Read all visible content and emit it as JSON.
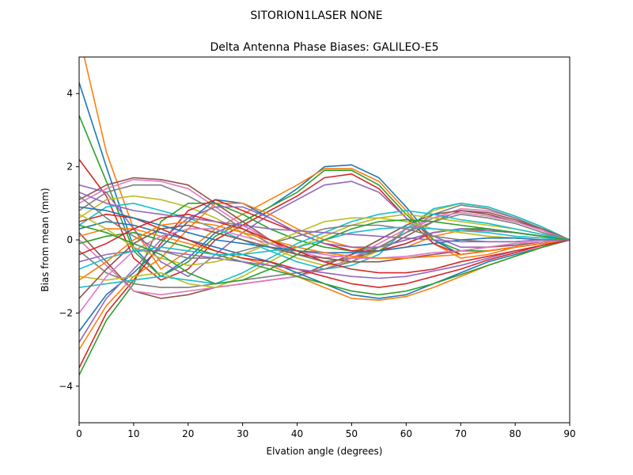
{
  "figure": {
    "suptitle": "SITORION1LASER  NONE"
  },
  "chart_data": {
    "type": "line",
    "title": "Delta Antenna Phase Biases: GALILEO-E5",
    "xlabel": "Elvation angle (degrees)",
    "ylabel": "Bias from mean (mm)",
    "xlim": [
      0,
      90
    ],
    "ylim": [
      -5,
      5
    ],
    "xticks": [
      0,
      10,
      20,
      30,
      40,
      50,
      60,
      70,
      80,
      90
    ],
    "yticks": [
      -4,
      -2,
      0,
      2,
      4
    ],
    "ytick_labels": [
      "−4",
      "−2",
      "0",
      "2",
      "4"
    ],
    "grid": false,
    "legend": "none",
    "x": [
      0,
      5,
      10,
      15,
      20,
      25,
      30,
      35,
      40,
      45,
      50,
      55,
      60,
      65,
      70,
      75,
      80,
      85,
      90
    ],
    "colors": [
      "#1f77b4",
      "#ff7f0e",
      "#2ca02c",
      "#d62728",
      "#9467bd",
      "#8c564b",
      "#e377c2",
      "#7f7f7f",
      "#bcbd22",
      "#17becf"
    ],
    "series": [
      {
        "values": [
          4.3,
          2.0,
          -0.2,
          -1.0,
          -0.5,
          0.2,
          0.5,
          0.9,
          1.4,
          2.0,
          2.05,
          1.7,
          0.9,
          0.0,
          -0.4,
          -0.3,
          -0.2,
          -0.1,
          0.0
        ]
      },
      {
        "values": [
          5.6,
          2.4,
          0.3,
          -0.8,
          -0.3,
          0.3,
          0.7,
          1.1,
          1.5,
          1.95,
          1.95,
          1.6,
          0.8,
          -0.1,
          -0.5,
          -0.4,
          -0.2,
          -0.1,
          0.0
        ]
      },
      {
        "values": [
          3.4,
          1.6,
          -0.3,
          -1.0,
          -0.6,
          0.1,
          0.5,
          0.9,
          1.3,
          1.9,
          1.9,
          1.5,
          0.7,
          0.0,
          -0.3,
          -0.3,
          -0.2,
          -0.1,
          0.0
        ]
      },
      {
        "values": [
          2.2,
          1.2,
          -0.5,
          -1.1,
          -0.8,
          0.0,
          0.4,
          0.8,
          1.2,
          1.7,
          1.8,
          1.4,
          0.6,
          -0.1,
          -0.4,
          -0.3,
          -0.2,
          -0.1,
          0.0
        ]
      },
      {
        "values": [
          1.5,
          1.3,
          0.3,
          -0.6,
          -1.0,
          -0.4,
          0.2,
          0.7,
          1.1,
          1.5,
          1.6,
          1.3,
          0.6,
          0.1,
          -0.2,
          -0.2,
          -0.1,
          -0.05,
          0.0
        ]
      },
      {
        "values": [
          1.1,
          1.5,
          1.7,
          1.65,
          1.5,
          1.0,
          0.5,
          0.0,
          -0.4,
          -0.6,
          -0.5,
          -0.3,
          0.1,
          0.5,
          0.8,
          0.75,
          0.55,
          0.3,
          0.0
        ]
      },
      {
        "values": [
          1.0,
          1.4,
          1.65,
          1.6,
          1.4,
          0.9,
          0.4,
          0.0,
          -0.3,
          -0.5,
          -0.4,
          -0.2,
          0.2,
          0.6,
          0.85,
          0.8,
          0.6,
          0.3,
          0.0
        ]
      },
      {
        "values": [
          0.8,
          1.3,
          1.5,
          1.5,
          1.2,
          0.8,
          0.3,
          -0.1,
          -0.4,
          -0.6,
          -0.5,
          -0.2,
          0.2,
          0.7,
          0.95,
          0.85,
          0.6,
          0.3,
          0.0
        ]
      },
      {
        "values": [
          0.6,
          1.1,
          1.2,
          1.1,
          0.9,
          0.6,
          0.2,
          -0.2,
          -0.5,
          -0.7,
          -0.6,
          -0.3,
          0.3,
          0.8,
          1.0,
          0.9,
          0.65,
          0.35,
          0.0
        ]
      },
      {
        "values": [
          0.4,
          0.9,
          1.0,
          0.8,
          0.6,
          0.3,
          0.0,
          -0.3,
          -0.6,
          -0.8,
          -0.7,
          -0.4,
          0.3,
          0.85,
          1.0,
          0.9,
          0.65,
          0.35,
          0.0
        ]
      },
      {
        "values": [
          -2.5,
          -1.5,
          -0.9,
          -0.2,
          0.5,
          1.1,
          1.0,
          0.6,
          0.2,
          -0.1,
          -0.3,
          -0.3,
          -0.1,
          0.2,
          0.3,
          0.3,
          0.2,
          0.1,
          0.0
        ]
      },
      {
        "values": [
          -3.0,
          -1.8,
          -1.0,
          -0.5,
          0.3,
          1.0,
          1.0,
          0.7,
          0.3,
          0.0,
          -0.2,
          -0.3,
          -0.2,
          0.1,
          0.25,
          0.25,
          0.2,
          0.1,
          0.0
        ]
      },
      {
        "values": [
          -3.7,
          -2.2,
          -1.2,
          0.5,
          1.0,
          1.0,
          0.7,
          0.3,
          0.0,
          -0.2,
          -0.3,
          -0.2,
          0.0,
          0.2,
          0.3,
          0.3,
          0.2,
          0.1,
          0.0
        ]
      },
      {
        "values": [
          -3.5,
          -2.0,
          -1.1,
          -0.1,
          0.8,
          1.1,
          0.8,
          0.5,
          0.2,
          -0.1,
          -0.3,
          -0.3,
          -0.1,
          0.2,
          0.3,
          0.25,
          0.2,
          0.1,
          0.0
        ]
      },
      {
        "values": [
          -2.8,
          -1.6,
          -0.8,
          0.0,
          0.6,
          0.9,
          0.9,
          0.6,
          0.2,
          -0.1,
          -0.2,
          -0.2,
          0.0,
          0.2,
          0.3,
          0.25,
          0.2,
          0.1,
          0.0
        ]
      },
      {
        "values": [
          0.2,
          -0.6,
          -1.4,
          -1.6,
          -1.5,
          -1.3,
          -1.2,
          -1.1,
          -1.0,
          -0.7,
          -0.4,
          0.0,
          0.4,
          0.7,
          0.8,
          0.7,
          0.5,
          0.3,
          0.0
        ]
      },
      {
        "values": [
          0.0,
          -0.7,
          -1.4,
          -1.5,
          -1.4,
          -1.3,
          -1.2,
          -1.1,
          -1.0,
          -0.8,
          -0.5,
          -0.1,
          0.3,
          0.6,
          0.75,
          0.65,
          0.5,
          0.25,
          0.0
        ]
      },
      {
        "values": [
          -0.3,
          -0.9,
          -1.2,
          -1.3,
          -1.3,
          -1.2,
          -1.1,
          -1.0,
          -0.9,
          -0.8,
          -0.6,
          -0.2,
          0.2,
          0.5,
          0.7,
          0.6,
          0.45,
          0.2,
          0.0
        ]
      },
      {
        "values": [
          -1.0,
          -1.1,
          -1.0,
          -0.9,
          -1.2,
          -1.3,
          -1.0,
          -0.6,
          -0.2,
          0.1,
          0.4,
          0.6,
          0.7,
          0.6,
          0.5,
          0.4,
          0.3,
          0.15,
          0.0
        ]
      },
      {
        "values": [
          -1.3,
          -1.2,
          -1.1,
          -1.0,
          -1.1,
          -1.2,
          -0.9,
          -0.5,
          -0.1,
          0.2,
          0.5,
          0.7,
          0.8,
          0.7,
          0.55,
          0.45,
          0.3,
          0.15,
          0.0
        ]
      },
      {
        "values": [
          0.3,
          0.5,
          0.4,
          0.2,
          0.0,
          -0.2,
          -0.4,
          -0.6,
          -0.9,
          -1.2,
          -1.5,
          -1.6,
          -1.5,
          -1.2,
          -0.9,
          -0.6,
          -0.4,
          -0.2,
          0.0
        ]
      },
      {
        "values": [
          0.1,
          0.3,
          0.3,
          0.1,
          -0.1,
          -0.3,
          -0.5,
          -0.7,
          -1.0,
          -1.3,
          -1.6,
          -1.65,
          -1.55,
          -1.3,
          -1.0,
          -0.7,
          -0.45,
          -0.2,
          0.0
        ]
      },
      {
        "values": [
          -0.1,
          0.1,
          0.2,
          0.0,
          -0.2,
          -0.4,
          -0.6,
          -0.8,
          -1.0,
          -1.2,
          -1.4,
          -1.5,
          -1.4,
          -1.2,
          -0.95,
          -0.7,
          -0.45,
          -0.2,
          0.0
        ]
      },
      {
        "values": [
          0.5,
          0.7,
          0.6,
          0.3,
          0.0,
          -0.3,
          -0.5,
          -0.6,
          -0.8,
          -1.0,
          -1.2,
          -1.3,
          -1.2,
          -1.0,
          -0.8,
          -0.55,
          -0.35,
          -0.15,
          0.0
        ]
      },
      {
        "values": [
          -0.6,
          -0.4,
          -0.3,
          -0.3,
          -0.4,
          -0.5,
          -0.6,
          -0.7,
          -0.8,
          -0.9,
          -1.0,
          -1.05,
          -1.0,
          -0.85,
          -0.7,
          -0.5,
          -0.3,
          -0.15,
          0.0
        ]
      },
      {
        "values": [
          -1.6,
          -0.8,
          -0.1,
          0.3,
          0.4,
          0.2,
          0.0,
          -0.2,
          -0.4,
          -0.5,
          -0.6,
          -0.6,
          -0.5,
          -0.4,
          -0.3,
          -0.2,
          -0.15,
          -0.05,
          0.0
        ]
      },
      {
        "values": [
          -2.0,
          -1.0,
          -0.3,
          0.1,
          0.3,
          0.3,
          0.1,
          -0.1,
          -0.3,
          -0.4,
          -0.5,
          -0.5,
          -0.45,
          -0.35,
          -0.3,
          -0.2,
          -0.1,
          -0.05,
          0.0
        ]
      },
      {
        "values": [
          1.2,
          0.6,
          0.1,
          -0.3,
          -0.5,
          -0.5,
          -0.3,
          -0.1,
          0.1,
          0.3,
          0.4,
          0.4,
          0.3,
          0.1,
          0.0,
          -0.05,
          -0.05,
          0.0,
          0.0
        ]
      },
      {
        "values": [
          0.7,
          0.3,
          -0.2,
          -0.5,
          -0.7,
          -0.6,
          -0.4,
          -0.1,
          0.2,
          0.5,
          0.6,
          0.6,
          0.5,
          0.3,
          0.2,
          0.1,
          0.05,
          0.0,
          0.0
        ]
      },
      {
        "values": [
          -0.8,
          -0.5,
          -0.3,
          -0.2,
          -0.3,
          -0.4,
          -0.4,
          -0.3,
          -0.2,
          0.0,
          0.2,
          0.3,
          0.35,
          0.3,
          0.25,
          0.2,
          0.1,
          0.05,
          0.0
        ]
      },
      {
        "values": [
          0.9,
          0.8,
          0.6,
          0.4,
          0.2,
          0.0,
          -0.1,
          -0.2,
          -0.3,
          -0.35,
          -0.35,
          -0.3,
          -0.2,
          -0.1,
          0.0,
          0.05,
          0.05,
          0.0,
          0.0
        ]
      },
      {
        "values": [
          -1.1,
          -0.6,
          0.0,
          0.4,
          0.5,
          0.4,
          0.2,
          0.0,
          -0.2,
          -0.35,
          -0.45,
          -0.5,
          -0.5,
          -0.45,
          -0.4,
          -0.3,
          -0.2,
          -0.1,
          0.0
        ]
      },
      {
        "values": [
          0.4,
          0.2,
          -0.1,
          -0.4,
          -0.9,
          -1.2,
          -1.1,
          -0.8,
          -0.4,
          0.0,
          0.3,
          0.5,
          0.55,
          0.5,
          0.4,
          0.3,
          0.2,
          0.1,
          0.0
        ]
      },
      {
        "values": [
          -0.4,
          -0.1,
          0.3,
          0.6,
          0.7,
          0.5,
          0.3,
          0.0,
          -0.3,
          -0.6,
          -0.8,
          -0.9,
          -0.9,
          -0.8,
          -0.6,
          -0.45,
          -0.3,
          -0.15,
          0.0
        ]
      },
      {
        "values": [
          1.3,
          1.0,
          0.8,
          0.7,
          0.6,
          0.5,
          0.4,
          0.3,
          0.25,
          0.2,
          0.15,
          0.1,
          0.05,
          0.0,
          -0.05,
          -0.05,
          -0.05,
          0.0,
          0.0
        ]
      }
    ]
  }
}
